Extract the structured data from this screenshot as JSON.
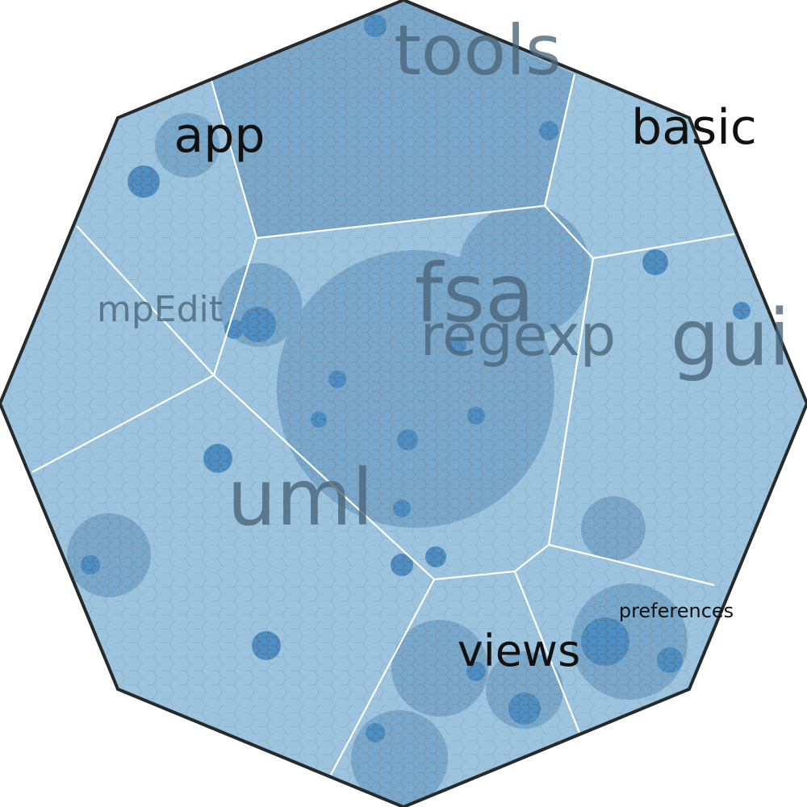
{
  "labels": {
    "tools": "tools",
    "app": "app",
    "basic": "basic",
    "mpedit": "mpEdit",
    "fsa": "fsa",
    "regexp": "regexp",
    "gui": "gui",
    "uml": "uml",
    "views": "views",
    "preferences": "preferences"
  },
  "colors": {
    "background": "#ffffff",
    "outline": "#262a2b",
    "region_border": "#ffffff",
    "shade_light": "#9cc4de",
    "shade_medium": "#78a8cc",
    "shade_dark": "#4b8fc6",
    "cell_stroke": "#7f93a4"
  }
}
